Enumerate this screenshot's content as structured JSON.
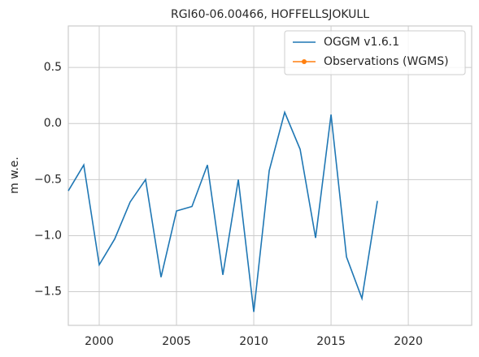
{
  "chart_data": {
    "type": "line",
    "title": "RGI60-06.00466, HOFFELLSJOKULL",
    "y_label": "m w.e.",
    "x": [
      1998,
      1999,
      2000,
      2001,
      2002,
      2003,
      2004,
      2005,
      2006,
      2007,
      2008,
      2009,
      2010,
      2011,
      2012,
      2013,
      2014,
      2015,
      2016,
      2017,
      2018
    ],
    "series": [
      {
        "name": "OGGM v1.6.1",
        "color": "#1f77b4",
        "values": [
          -0.6,
          -0.37,
          -1.26,
          -1.03,
          -0.7,
          -0.5,
          -1.37,
          -0.78,
          -0.74,
          -0.37,
          -1.35,
          -0.5,
          -1.68,
          -0.42,
          0.1,
          -0.23,
          -1.02,
          0.08,
          -1.19,
          -1.56,
          -0.69
        ]
      },
      {
        "name": "Observations (WGMS)",
        "color": "#ff7f0e",
        "marker": true,
        "values": [
          null,
          null,
          null,
          null,
          null,
          null,
          null,
          null,
          null,
          null,
          null,
          null,
          null,
          null,
          null,
          null,
          null,
          null,
          null,
          null,
          null
        ]
      }
    ],
    "xlim": [
      1998,
      2024.1
    ],
    "xticks": [
      2000,
      2005,
      2010,
      2015,
      2020
    ],
    "ylim": [
      -1.8,
      0.87
    ],
    "yticks": [
      {
        "value": -1.5,
        "label": "−1.5"
      },
      {
        "value": -1.0,
        "label": "−1.0"
      },
      {
        "value": -0.5,
        "label": "−0.5"
      },
      {
        "value": 0.0,
        "label": "0.0"
      },
      0.5
    ],
    "grid": true,
    "legend": "upper right"
  }
}
